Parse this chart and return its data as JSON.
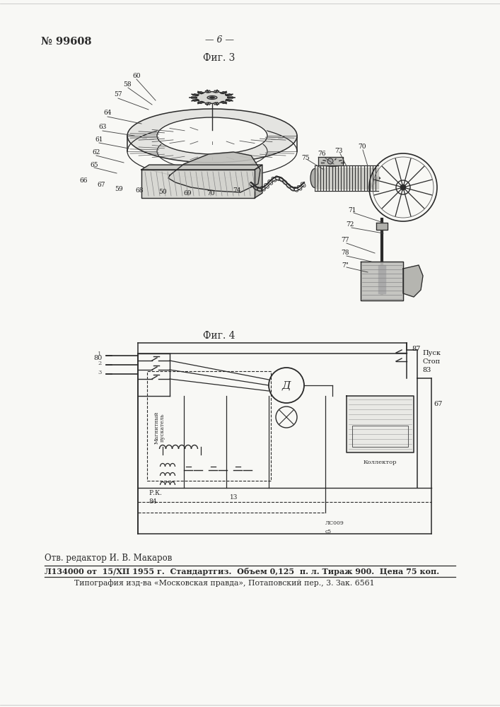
{
  "page_number": "№ 99608",
  "page_marker": "— 6 —",
  "fig3_label": "Фиг. 3",
  "fig4_label": "Фиг. 4",
  "footer_line1": "Отв. редактор И. В. Макаров",
  "footer_line2": "Л134000 от  15/XII 1955 г.  Стандартгиз.  Объем 0,125  п. л. Тираж 900.  Цена 75 коп.",
  "footer_line3": "Типография изд-ва «Московская правда», Потаповский пер., 3. Зак. 6561",
  "bg": "#f5f5f0",
  "ink": "#2a2a2a",
  "light_ink": "#555555",
  "fig3_labels": [
    [
      193,
      107,
      "60"
    ],
    [
      180,
      119,
      "58"
    ],
    [
      167,
      134,
      "57"
    ],
    [
      152,
      160,
      "64"
    ],
    [
      145,
      180,
      "63"
    ],
    [
      140,
      198,
      "61"
    ],
    [
      136,
      215,
      "62"
    ],
    [
      133,
      233,
      "65"
    ],
    [
      118,
      255,
      "66"
    ],
    [
      143,
      262,
      "67"
    ],
    [
      168,
      267,
      "59"
    ],
    [
      197,
      270,
      "68"
    ],
    [
      230,
      272,
      "50"
    ],
    [
      265,
      273,
      "69"
    ],
    [
      298,
      273,
      "70"
    ],
    [
      335,
      269,
      "74"
    ],
    [
      432,
      223,
      "75"
    ],
    [
      455,
      218,
      "76"
    ],
    [
      479,
      213,
      "73"
    ],
    [
      512,
      208,
      "70"
    ],
    [
      498,
      298,
      "71"
    ],
    [
      495,
      318,
      "72"
    ],
    [
      488,
      340,
      "77"
    ],
    [
      488,
      358,
      "78"
    ],
    [
      488,
      375,
      "7\""
    ]
  ],
  "fig4_labels_right": [
    [
      582,
      494,
      "87"
    ],
    [
      597,
      499,
      "Пуск"
    ],
    [
      597,
      511,
      "Стоп"
    ],
    [
      597,
      523,
      "83"
    ]
  ],
  "fig4_label_67": [
    613,
    571,
    "67"
  ]
}
